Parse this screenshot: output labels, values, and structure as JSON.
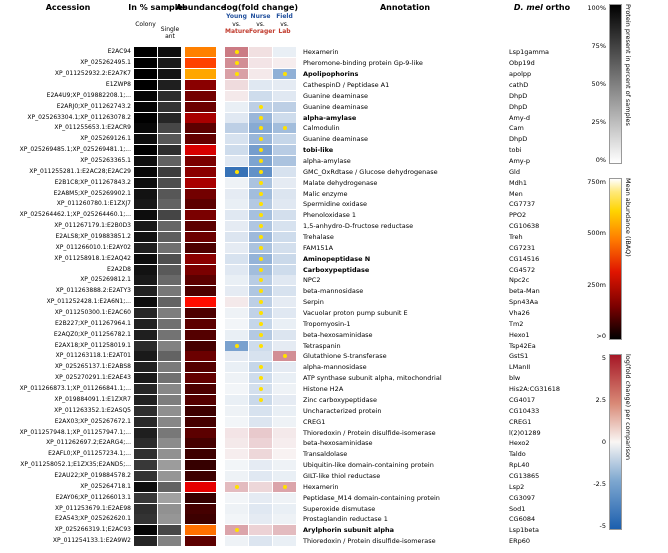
{
  "header": {
    "accession": "Accession",
    "in_pct_samples": "In % samples",
    "colony": "Colony",
    "single_ant": "Single ant",
    "abundance": "Abundance",
    "log_fold_change": "log(fold change)",
    "comparisons": [
      {
        "top": "Young",
        "mid": "vs.",
        "bottom": "Mature"
      },
      {
        "top": "Nurse",
        "mid": "vs.",
        "bottom": "Forager"
      },
      {
        "top": "Field",
        "mid": "vs.",
        "bottom": "Lab"
      }
    ],
    "annotation": "Annotation",
    "ortho_species": "D. mel",
    "ortho_rest": " ortho"
  },
  "colors": {
    "comparison_top": "#1f4e9c",
    "comparison_bottom": "#c0392b",
    "sig_dot": "#ffe100",
    "fc_positive_max": "#a61726",
    "fc_negative_max": "#1c5fae",
    "fc_zero": "#fbfbfb"
  },
  "legends": {
    "percent": {
      "ticks": [
        "100%",
        "75%",
        "50%",
        "25%",
        "0%"
      ],
      "caption": "Protein present in percent of samples"
    },
    "abundance": {
      "ticks": [
        "750m",
        "500m",
        "250m",
        ">0"
      ],
      "caption": "Mean abundance (iBAQ)"
    },
    "fold": {
      "ticks": [
        "5",
        "2.5",
        "0",
        "-2.5",
        "-5"
      ],
      "caption": "log(fold change) per comparison"
    }
  },
  "chart_data": {
    "type": "heatmap",
    "columns": [
      "Colony %",
      "Single ant %",
      "Abundance (iBAQ)",
      "log(fc) Young vs. Mature",
      "log(fc) Nurse vs. Forager",
      "log(fc) Field vs. Lab"
    ],
    "fc_range": [
      -5,
      5
    ],
    "row_fields": [
      "accession",
      "annotation",
      "bold",
      "dmel_ortho",
      "colony_pct",
      "single_ant_pct",
      "abundance_frac",
      "fc_young_mature",
      "fc_nurse_forager",
      "fc_field_lab",
      "sig_young_mature",
      "sig_nurse_forager",
      "sig_field_lab"
    ],
    "rows": [
      [
        "E2AC94",
        "Hexamerin",
        0,
        "Lsp1gamma",
        100,
        95,
        0.5,
        2.8,
        0.6,
        -0.4,
        1,
        0,
        0
      ],
      [
        "XP_025262495.1",
        "Pheromone-binding protein Gp-9-like",
        0,
        "Obp19d",
        100,
        90,
        0.42,
        2.4,
        0.5,
        0.3,
        1,
        0,
        0
      ],
      [
        "XP_011252932.2:E2A7K7",
        "Apolipophorins",
        1,
        "apolpp",
        100,
        92,
        0.55,
        2.0,
        0.4,
        -2.4,
        1,
        0,
        1
      ],
      [
        "E1ZWP8",
        "CathespinD / Peptidase A1",
        0,
        "cathD",
        100,
        88,
        0.18,
        0.7,
        -0.6,
        -0.5,
        0,
        0,
        0
      ],
      [
        "E2A4U9;XP_019882208.1;...",
        "Guanine deaminase",
        0,
        "DhpD",
        98,
        82,
        0.15,
        0.4,
        -1.0,
        -0.6,
        0,
        0,
        0
      ],
      [
        "E2ARJ0;XP_011262743.2",
        "Guanine deaminase",
        0,
        "DhpD",
        98,
        80,
        0.14,
        -0.4,
        -1.4,
        -1.4,
        0,
        1,
        0
      ],
      [
        "XP_025263304.1;XP_011263078.2",
        "alpha-amylase",
        1,
        "Amy-d",
        100,
        85,
        0.22,
        -0.6,
        -2.2,
        -1.0,
        0,
        1,
        0
      ],
      [
        "XP_011255653.1:E2ACR9",
        "Calmodulin",
        0,
        "Cam",
        97,
        72,
        0.12,
        -1.4,
        -2.6,
        -2.0,
        0,
        1,
        1
      ],
      [
        "XP_025269126.1",
        "Guanine deaminase",
        0,
        "DhpD",
        95,
        66,
        0.13,
        -0.8,
        -2.2,
        -1.2,
        0,
        1,
        0
      ],
      [
        "XP_025269485.1;XP_025269481.1;...",
        "tobi-like",
        1,
        "tobi",
        100,
        82,
        0.28,
        -1.0,
        -3.0,
        -1.5,
        0,
        1,
        0
      ],
      [
        "XP_025263365.1",
        "alpha-amylase",
        0,
        "Amy-p",
        94,
        62,
        0.16,
        -0.6,
        -2.8,
        -1.8,
        0,
        1,
        0
      ],
      [
        "XP_011255281.1:E2AC28;E2AC29",
        "GMC_OxRdtase / Glucose dehydrogenase",
        0,
        "Gld",
        97,
        76,
        0.18,
        -4.4,
        -3.4,
        -0.8,
        1,
        1,
        0
      ],
      [
        "E2B1C8;XP_011267843.2",
        "Malate dehydrogenase",
        0,
        "Mdh1",
        95,
        70,
        0.22,
        -0.3,
        -1.8,
        -0.5,
        0,
        1,
        0
      ],
      [
        "E2A8M5;XP_025269902.1",
        "Malic enzyme",
        0,
        "Men",
        93,
        66,
        0.15,
        -0.5,
        -2.0,
        -0.7,
        0,
        1,
        0
      ],
      [
        "XP_011260780.1:E1ZXJ7",
        "Spermidine oxidase",
        0,
        "CG7737",
        91,
        61,
        0.12,
        -0.4,
        -1.6,
        -0.6,
        0,
        1,
        0
      ],
      [
        "XP_025264462.1;XP_025264460.1;...",
        "Phenoloxidase 1",
        0,
        "PPO2",
        95,
        73,
        0.16,
        -0.6,
        -1.9,
        -0.9,
        0,
        1,
        0
      ],
      [
        "XP_011267179.1:E2B0D3",
        "1,5-anhydro-D-fructose reductase",
        0,
        "CG10638",
        90,
        60,
        0.12,
        -0.5,
        -1.7,
        -0.8,
        0,
        1,
        0
      ],
      [
        "E2ALS8;XP_019883851.2",
        "Trehalase",
        0,
        "Treh",
        93,
        63,
        0.14,
        -0.7,
        -2.1,
        -1.0,
        0,
        1,
        0
      ],
      [
        "XP_011266010.1:E2AY02",
        "FAM151A",
        0,
        "CG7231",
        88,
        56,
        0.1,
        -0.5,
        -1.8,
        -0.9,
        0,
        1,
        0
      ],
      [
        "XP_011258918.1:E2AQ42",
        "Aminopeptidase N",
        1,
        "CG14516",
        95,
        69,
        0.18,
        -0.8,
        -2.3,
        -1.1,
        0,
        1,
        0
      ],
      [
        "E2A2D8",
        "Carboxypeptidase",
        1,
        "CG4572",
        93,
        65,
        0.16,
        -0.6,
        -2.0,
        -1.0,
        0,
        1,
        0
      ],
      [
        "XP_025269812.1",
        "NPC2",
        0,
        "Npc2c",
        90,
        59,
        0.12,
        -0.4,
        -1.5,
        -0.6,
        0,
        1,
        0
      ],
      [
        "XP_011263888.2:E2ATY3",
        "beta-mannosidase",
        0,
        "beta-Man",
        87,
        53,
        0.1,
        -0.5,
        -1.7,
        -0.8,
        0,
        1,
        0
      ],
      [
        "XP_011252428.1:E2A6N1;...",
        "Serpin",
        0,
        "Spn43Aa",
        95,
        61,
        0.35,
        0.4,
        -1.4,
        -0.5,
        0,
        1,
        0
      ],
      [
        "XP_011250300.1:E2AC60",
        "Vacuolar proton pump subunit E",
        0,
        "Vha26",
        85,
        51,
        0.1,
        -0.3,
        -1.3,
        -0.6,
        0,
        1,
        0
      ],
      [
        "E2B227;XP_011267964.1",
        "Tropomyosin-1",
        0,
        "Tm2",
        87,
        56,
        0.12,
        -0.2,
        -1.2,
        -0.4,
        0,
        1,
        0
      ],
      [
        "E2AQZ0;XP_011256782.1",
        "beta-hexosaminidase",
        0,
        "Hexo1",
        88,
        55,
        0.11,
        -0.4,
        -1.6,
        -0.7,
        0,
        1,
        0
      ],
      [
        "E2AX18;XP_011258019.1",
        "Tetraspanin",
        0,
        "Tsp42Ea",
        83,
        49,
        0.09,
        -2.9,
        -1.0,
        -0.5,
        1,
        1,
        0
      ],
      [
        "XP_011263118.1:E2AT01",
        "Glutathione S-transferase",
        0,
        "GstS1",
        90,
        61,
        0.14,
        -0.5,
        -0.8,
        2.4,
        0,
        0,
        1
      ],
      [
        "XP_025265137.1:E2ABS8",
        "alpha-mannosidase",
        0,
        "LManII",
        87,
        52,
        0.11,
        -0.4,
        -1.2,
        -0.5,
        0,
        1,
        0
      ],
      [
        "XP_025270291.1:E2AE43",
        "ATP synthase subunit alpha, mitochondrial",
        0,
        "blw",
        90,
        56,
        0.13,
        -0.3,
        -1.0,
        -0.4,
        0,
        1,
        0
      ],
      [
        "XP_011266873.1;XP_011266841.1;...",
        "Histone H2A",
        0,
        "His2A:CG31618",
        85,
        47,
        0.1,
        -0.2,
        -0.9,
        -0.3,
        0,
        1,
        0
      ],
      [
        "XP_019884091.1:E1ZXR7",
        "Zinc carboxypeptidase",
        0,
        "CG4017",
        87,
        51,
        0.11,
        -0.4,
        -1.1,
        -0.5,
        0,
        1,
        0
      ],
      [
        "XP_011263352.1:E2ASQ5",
        "Uncharacterized protein",
        0,
        "CG10433",
        82,
        44,
        0.08,
        -0.3,
        -0.8,
        -0.4,
        0,
        0,
        0
      ],
      [
        "E2AX03;XP_025267672.1",
        "CREG1",
        0,
        "CREG1",
        84,
        47,
        0.09,
        -0.2,
        -0.7,
        -0.3,
        0,
        0,
        0
      ],
      [
        "XP_011257948.1;XP_011257947.1;...",
        "Thioredoxin / Protein disulfide-isomerase",
        0,
        "l(2)01289",
        88,
        53,
        0.12,
        0.5,
        1.1,
        0.4,
        0,
        0,
        0
      ],
      [
        "XP_011262697.2;E2ARG4;...",
        "beta-hexosaminidase",
        0,
        "Hexo2",
        83,
        45,
        0.09,
        0.4,
        0.9,
        0.3,
        0,
        0,
        0
      ],
      [
        "E2AFL0;XP_011257234.1;...",
        "Transaldolase",
        0,
        "Taldo",
        81,
        43,
        0.08,
        0.3,
        0.8,
        0.2,
        0,
        0,
        0
      ],
      [
        "XP_011258052.1;E1ZX35;E2AND5;...",
        "Ubiquitin-like domain-containing protein",
        0,
        "RpL40",
        78,
        39,
        0.07,
        -0.2,
        -0.5,
        -0.3,
        0,
        0,
        0
      ],
      [
        "E2AU22;XP_019884578.2",
        "GILT-like thiol reductase",
        0,
        "CG13865",
        80,
        41,
        0.08,
        -0.3,
        -0.6,
        -0.4,
        0,
        0,
        0
      ],
      [
        "XP_025264718.1",
        "Hexamerin",
        0,
        "Lsp2",
        95,
        61,
        0.3,
        1.4,
        0.8,
        1.9,
        1,
        0,
        1
      ],
      [
        "E2AY06;XP_011266013.1",
        "Peptidase_M14 domain-containing protein",
        0,
        "CG3097",
        78,
        37,
        0.07,
        -0.2,
        -0.5,
        -0.3,
        0,
        0,
        0
      ],
      [
        "XP_011253679.1:E2AE98",
        "Superoxide dismutase",
        0,
        "Sod1",
        82,
        43,
        0.09,
        -0.3,
        -0.6,
        -0.4,
        0,
        0,
        0
      ],
      [
        "E2A543;XP_025262620.1",
        "Prostaglandin reductase 1",
        0,
        "CG6084",
        80,
        41,
        0.08,
        -0.2,
        -0.5,
        -0.3,
        0,
        0,
        0
      ],
      [
        "XP_025266319.1;E2AC93",
        "Arylphorin subunit alpha",
        1,
        "Lsp1beta",
        98,
        72,
        0.48,
        1.9,
        0.9,
        1.4,
        1,
        0,
        0
      ],
      [
        "XP_011254133.1:E2A9W2",
        "Thioredoxin / Protein disulfide-isomerase",
        0,
        "ERp60",
        85,
        49,
        0.12,
        -0.3,
        -0.7,
        -0.4,
        0,
        0,
        0
      ]
    ]
  }
}
